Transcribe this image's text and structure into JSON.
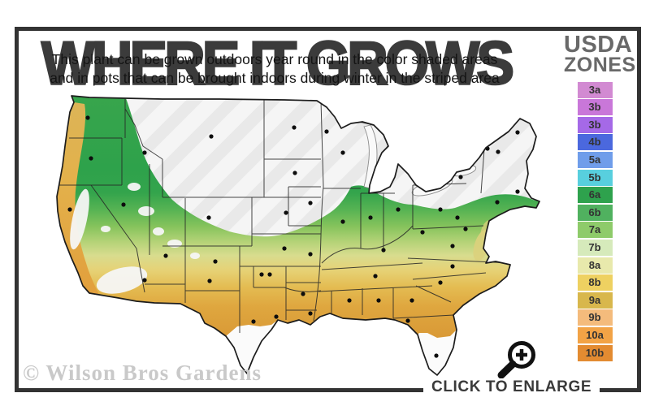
{
  "header": {
    "title": "WHERE IT GROWS",
    "subtitle_line1": "This plant can be grown outdoors year round in the color shaded areas",
    "subtitle_line2": "and in pots that can be brought indoors during winter in the striped area"
  },
  "legend": {
    "title_line1": "USDA",
    "title_line2": "ZONES",
    "zones": [
      {
        "label": "3a",
        "color": "#d28ad2"
      },
      {
        "label": "3b",
        "color": "#c977d9"
      },
      {
        "label": "3b",
        "color": "#a569e7"
      },
      {
        "label": "4b",
        "color": "#4b68de"
      },
      {
        "label": "5a",
        "color": "#6f9dea"
      },
      {
        "label": "5b",
        "color": "#58cfde"
      },
      {
        "label": "6a",
        "color": "#2ea24d"
      },
      {
        "label": "6b",
        "color": "#50b15f"
      },
      {
        "label": "7a",
        "color": "#8ecb6a"
      },
      {
        "label": "7b",
        "color": "#d6eabb"
      },
      {
        "label": "8a",
        "color": "#e8e9ac"
      },
      {
        "label": "8b",
        "color": "#eed161"
      },
      {
        "label": "9a",
        "color": "#d8b74c"
      },
      {
        "label": "9b",
        "color": "#f4bb7c"
      },
      {
        "label": "10a",
        "color": "#f2a346"
      },
      {
        "label": "10b",
        "color": "#e38b31"
      }
    ]
  },
  "map": {
    "watermark": "© Wilson Bros Gardens",
    "palette": {
      "zone_green_dark": "#2ea24d",
      "zone_green_light": "#8ecb6a",
      "zone_khaki": "#e0d98e",
      "zone_gold": "#e5c35d",
      "zone_tan": "#dfa43f",
      "striped_area_band": "#eaeaea",
      "no_grow_white": "#fbfbfb",
      "border_line": "#262626"
    },
    "city_dots": [
      [
        58,
        35
      ],
      [
        62,
        85
      ],
      [
        36,
        148
      ],
      [
        45,
        232
      ],
      [
        102,
        142
      ],
      [
        128,
        78
      ],
      [
        210,
        58
      ],
      [
        207,
        158
      ],
      [
        154,
        205
      ],
      [
        215,
        212
      ],
      [
        128,
        235
      ],
      [
        208,
        236
      ],
      [
        312,
        47
      ],
      [
        313,
        103
      ],
      [
        302,
        152
      ],
      [
        300,
        196
      ],
      [
        272,
        228
      ],
      [
        282,
        228
      ],
      [
        262,
        286
      ],
      [
        290,
        280
      ],
      [
        352,
        52
      ],
      [
        332,
        140
      ],
      [
        332,
        203
      ],
      [
        323,
        252
      ],
      [
        332,
        276
      ],
      [
        372,
        78
      ],
      [
        372,
        163
      ],
      [
        406,
        158
      ],
      [
        418,
        112
      ],
      [
        440,
        148
      ],
      [
        422,
        198
      ],
      [
        412,
        230
      ],
      [
        380,
        260
      ],
      [
        416,
        260
      ],
      [
        457,
        260
      ],
      [
        452,
        285
      ],
      [
        487,
        328
      ],
      [
        492,
        238
      ],
      [
        507,
        218
      ],
      [
        507,
        193
      ],
      [
        470,
        176
      ],
      [
        492,
        148
      ],
      [
        517,
        108
      ],
      [
        513,
        158
      ],
      [
        523,
        172
      ],
      [
        550,
        73
      ],
      [
        563,
        77
      ],
      [
        587,
        53
      ],
      [
        587,
        126
      ],
      [
        562,
        139
      ]
    ]
  },
  "footer": {
    "click_to_enlarge": "CLICK TO ENLARGE"
  }
}
